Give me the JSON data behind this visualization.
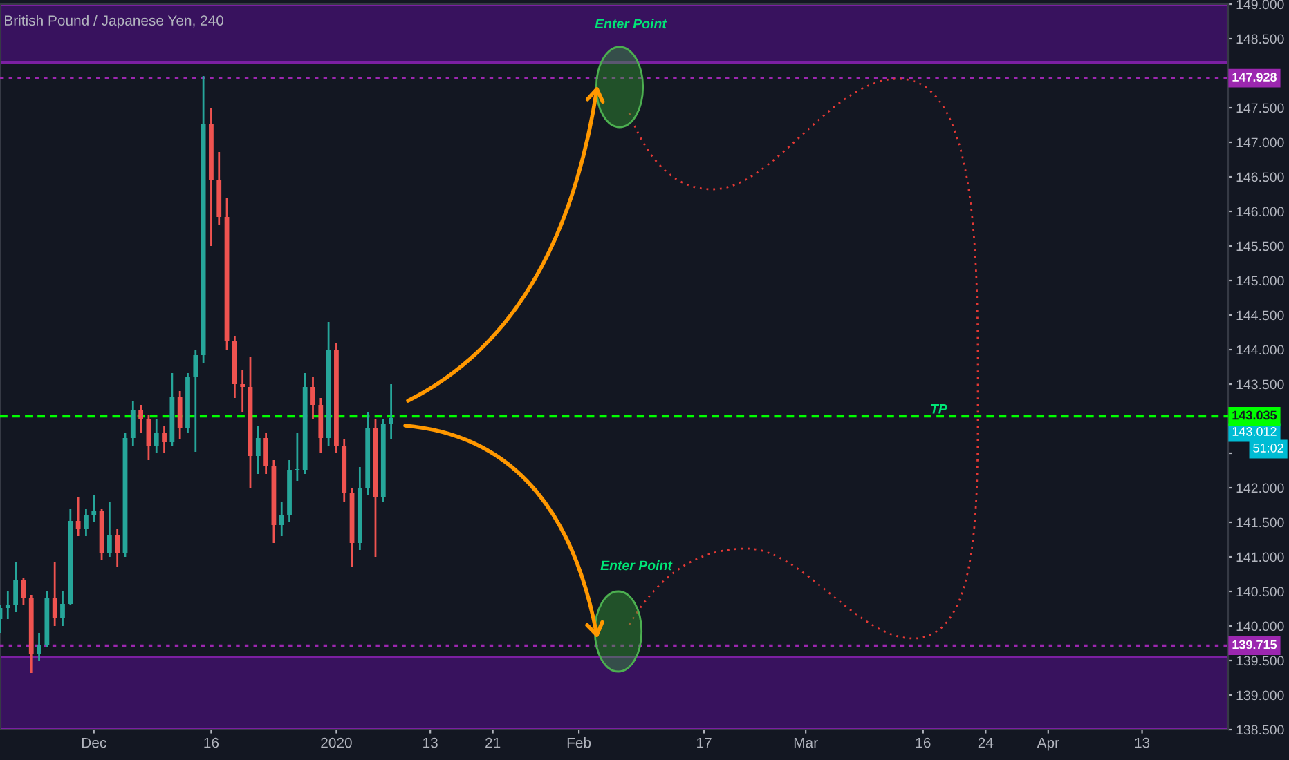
{
  "chart_data": {
    "type": "candlestick",
    "title": "British Pound / Japanese Yen, 240",
    "x": [
      "2019-11-19",
      "2019-11-20",
      "2019-11-21",
      "2019-11-22",
      "2019-11-23",
      "2019-11-24",
      "2019-11-25",
      "2019-11-26",
      "2019-11-27",
      "2019-11-28",
      "2019-11-29",
      "2019-11-30",
      "2019-12-01",
      "2019-12-02",
      "2019-12-03",
      "2019-12-04",
      "2019-12-05",
      "2019-12-06",
      "2019-12-07",
      "2019-12-08",
      "2019-12-09",
      "2019-12-10",
      "2019-12-11",
      "2019-12-12",
      "2019-12-13",
      "2019-12-14",
      "2019-12-15",
      "2019-12-16",
      "2019-12-17",
      "2019-12-18",
      "2019-12-19",
      "2019-12-20",
      "2019-12-21",
      "2019-12-22",
      "2019-12-23",
      "2019-12-24",
      "2019-12-25",
      "2019-12-26",
      "2019-12-27",
      "2019-12-28",
      "2019-12-29",
      "2019-12-30",
      "2019-12-31",
      "2020-01-01",
      "2020-01-02",
      "2020-01-03",
      "2020-01-04",
      "2020-01-05",
      "2020-01-06",
      "2020-01-07",
      "2020-01-08"
    ],
    "ohlc": [
      [
        140.1,
        140.3,
        139.9,
        140.26
      ],
      [
        140.26,
        140.5,
        140.1,
        140.3
      ],
      [
        140.3,
        140.92,
        140.2,
        140.66
      ],
      [
        140.66,
        140.7,
        140.3,
        140.4
      ],
      [
        140.4,
        140.45,
        139.32,
        139.6
      ],
      [
        139.6,
        139.9,
        139.5,
        139.72
      ],
      [
        139.72,
        140.5,
        139.7,
        140.4
      ],
      [
        140.4,
        140.92,
        140.0,
        140.12
      ],
      [
        140.12,
        140.5,
        140.0,
        140.32
      ],
      [
        140.32,
        141.7,
        140.3,
        141.52
      ],
      [
        141.52,
        141.86,
        141.3,
        141.4
      ],
      [
        141.4,
        141.7,
        141.3,
        141.6
      ],
      [
        141.6,
        141.9,
        141.5,
        141.66
      ],
      [
        141.66,
        141.7,
        140.95,
        141.06
      ],
      [
        141.06,
        141.8,
        141.0,
        141.32
      ],
      [
        141.32,
        141.4,
        140.86,
        141.06
      ],
      [
        141.06,
        142.8,
        141.0,
        142.72
      ],
      [
        142.72,
        143.26,
        142.6,
        143.12
      ],
      [
        143.12,
        143.2,
        142.8,
        143.0
      ],
      [
        143.0,
        143.05,
        142.4,
        142.6
      ],
      [
        142.6,
        143.0,
        142.5,
        142.8
      ],
      [
        142.8,
        142.9,
        142.5,
        142.66
      ],
      [
        142.66,
        143.66,
        142.6,
        143.32
      ],
      [
        143.32,
        143.4,
        142.7,
        142.86
      ],
      [
        142.86,
        143.66,
        142.8,
        143.6
      ],
      [
        143.6,
        144.0,
        142.52,
        143.92
      ],
      [
        143.92,
        147.96,
        143.8,
        147.26
      ],
      [
        147.26,
        147.5,
        145.5,
        146.46
      ],
      [
        146.46,
        146.86,
        145.8,
        145.92
      ],
      [
        145.92,
        146.2,
        144.0,
        144.12
      ],
      [
        144.12,
        144.2,
        143.3,
        143.5
      ],
      [
        143.5,
        143.7,
        143.1,
        143.46
      ],
      [
        143.46,
        143.9,
        142.0,
        142.46
      ],
      [
        142.46,
        142.9,
        142.2,
        142.72
      ],
      [
        142.72,
        142.8,
        142.2,
        142.32
      ],
      [
        142.32,
        142.4,
        141.2,
        141.46
      ],
      [
        141.46,
        141.8,
        141.3,
        141.6
      ],
      [
        141.6,
        142.4,
        141.5,
        142.26
      ],
      [
        142.26,
        142.8,
        142.1,
        142.26
      ],
      [
        142.26,
        143.66,
        142.2,
        143.46
      ],
      [
        143.46,
        143.6,
        143.0,
        143.2
      ],
      [
        143.2,
        143.3,
        142.5,
        142.72
      ],
      [
        142.72,
        144.4,
        142.6,
        144.0
      ],
      [
        144.0,
        144.1,
        142.5,
        142.6
      ],
      [
        142.6,
        142.7,
        141.8,
        141.92
      ],
      [
        141.92,
        142.0,
        140.86,
        141.2
      ],
      [
        141.2,
        142.3,
        141.1,
        142.0
      ],
      [
        142.0,
        143.1,
        141.9,
        142.86
      ],
      [
        142.86,
        143.0,
        141.0,
        141.86
      ],
      [
        141.86,
        143.0,
        141.8,
        142.92
      ],
      [
        142.92,
        143.5,
        142.7,
        143.012
      ]
    ],
    "xlim": [
      "2019-11-19",
      "2020-04-24"
    ],
    "xticks": [
      {
        "value": "2019-12-01",
        "label": "Dec"
      },
      {
        "value": "2019-12-16",
        "label": "16"
      },
      {
        "value": "2020-01-01",
        "label": "2020"
      },
      {
        "value": "2020-01-13",
        "label": "13"
      },
      {
        "value": "2020-01-21",
        "label": "21"
      },
      {
        "value": "2020-02-01",
        "label": "Feb"
      },
      {
        "value": "2020-02-17",
        "label": "17"
      },
      {
        "value": "2020-03-01",
        "label": "Mar"
      },
      {
        "value": "2020-03-16",
        "label": "16"
      },
      {
        "value": "2020-03-24",
        "label": "24"
      },
      {
        "value": "2020-04-01",
        "label": "Apr"
      },
      {
        "value": "2020-04-13",
        "label": "13"
      }
    ],
    "ylim": [
      138.5,
      149.0
    ],
    "yticks": [
      {
        "value": 138.5,
        "label": "138.500"
      },
      {
        "value": 139.0,
        "label": "139.000"
      },
      {
        "value": 139.5,
        "label": "139.500"
      },
      {
        "value": 140.0,
        "label": "140.000"
      },
      {
        "value": 140.5,
        "label": "140.500"
      },
      {
        "value": 141.0,
        "label": "141.000"
      },
      {
        "value": 141.5,
        "label": "141.500"
      },
      {
        "value": 142.0,
        "label": "142.000"
      },
      {
        "value": 142.5,
        "label": null
      },
      {
        "value": 143.0,
        "label": null
      },
      {
        "value": 143.5,
        "label": "143.500"
      },
      {
        "value": 144.0,
        "label": "144.000"
      },
      {
        "value": 144.5,
        "label": "144.500"
      },
      {
        "value": 145.0,
        "label": "145.000"
      },
      {
        "value": 145.5,
        "label": "145.500"
      },
      {
        "value": 146.0,
        "label": "146.000"
      },
      {
        "value": 146.5,
        "label": "146.500"
      },
      {
        "value": 147.0,
        "label": "147.000"
      },
      {
        "value": 147.5,
        "label": "147.500"
      },
      {
        "value": 148.0,
        "label": null
      },
      {
        "value": 148.5,
        "label": "148.500"
      },
      {
        "value": 149.0,
        "label": "149.000"
      }
    ],
    "grid": false,
    "legend": false,
    "bands": [
      {
        "axis": "y",
        "from": 148.15,
        "to": 149.0,
        "color": "#38125e"
      },
      {
        "axis": "y",
        "from": 138.5,
        "to": 139.55,
        "color": "#38125e"
      }
    ],
    "ref_lines": [
      {
        "axis": "y",
        "value": 147.928,
        "label": "147.928",
        "color": "#9c27b0",
        "line_style": "dotted"
      },
      {
        "axis": "y",
        "value": 139.715,
        "label": "139.715",
        "color": "#9c27b0",
        "line_style": "dotted"
      },
      {
        "axis": "y",
        "value": 143.035,
        "label": "143.035",
        "color": "#00ff00",
        "line_style": "dashed"
      }
    ],
    "annotations": [
      "Enter Point",
      "Enter Point",
      {
        "text": "TP",
        "x": "2020-03-18",
        "y": 143.035
      },
      "143.012",
      "51:02"
    ]
  }
}
